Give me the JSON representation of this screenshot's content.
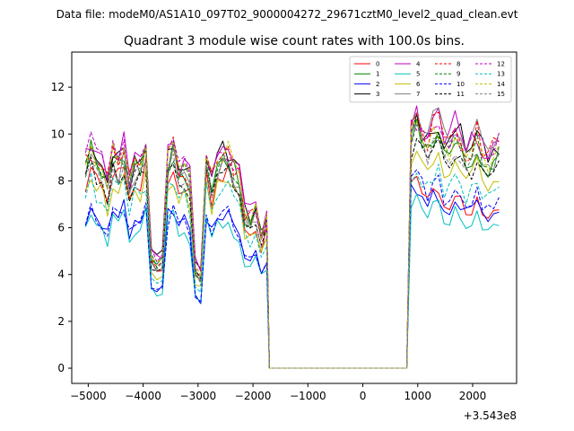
{
  "chart_data": {
    "type": "line",
    "suptitle": "Data file: modeM0/AS1A10_097T02_9000004272_29671cztM0_level2_quad_clean.evt",
    "title": "Quadrant 3 module wise count rates with 100.0s bins.",
    "xlabel": "",
    "ylabel": "",
    "x_offset_label": "+3.543e8",
    "xlim": [
      -5300,
      2800
    ],
    "ylim": [
      -0.65,
      13.5
    ],
    "x_ticks": [
      -5000,
      -4000,
      -3000,
      -2000,
      -1000,
      0,
      1000,
      2000
    ],
    "x_tick_labels": [
      "−5000",
      "−4000",
      "−3000",
      "−2000",
      "−1000",
      "0",
      "1000",
      "2000"
    ],
    "y_ticks": [
      0,
      2,
      4,
      6,
      8,
      10,
      12
    ],
    "y_tick_labels": [
      "0",
      "2",
      "4",
      "6",
      "8",
      "10",
      "12"
    ],
    "grid": false,
    "legend_placement": "top-right",
    "gti": [
      {
        "start": -5050,
        "stop": -1750
      },
      {
        "start": 880,
        "stop": 2430
      }
    ],
    "gap_level": 0.0,
    "gap_ends": [
      -1700,
      800
    ],
    "series": [
      {
        "name": "0",
        "color": "#ff0000",
        "dash": false,
        "base1": 8.0,
        "base2": 7.6
      },
      {
        "name": "1",
        "color": "#008000",
        "dash": false,
        "base1": 8.6,
        "base2": 9.7
      },
      {
        "name": "2",
        "color": "#0000ff",
        "dash": false,
        "base1": 6.4,
        "base2": 7.4
      },
      {
        "name": "3",
        "color": "#000000",
        "dash": false,
        "base1": 8.9,
        "base2": 10.4
      },
      {
        "name": "4",
        "color": "#c000c0",
        "dash": false,
        "base1": 9.1,
        "base2": 10.6
      },
      {
        "name": "5",
        "color": "#00bfbf",
        "dash": false,
        "base1": 6.0,
        "base2": 6.9
      },
      {
        "name": "6",
        "color": "#bfbf00",
        "dash": false,
        "base1": 7.6,
        "base2": 9.0
      },
      {
        "name": "7",
        "color": "#808080",
        "dash": false,
        "base1": 8.3,
        "base2": 10.7
      },
      {
        "name": "8",
        "color": "#ff0000",
        "dash": true,
        "base1": 8.8,
        "base2": 10.4
      },
      {
        "name": "9",
        "color": "#008000",
        "dash": true,
        "base1": 8.5,
        "base2": 9.9
      },
      {
        "name": "10",
        "color": "#0000ff",
        "dash": true,
        "base1": 6.3,
        "base2": 7.9
      },
      {
        "name": "11",
        "color": "#000000",
        "dash": true,
        "base1": 8.1,
        "base2": 9.4
      },
      {
        "name": "12",
        "color": "#c000c0",
        "dash": true,
        "base1": 8.9,
        "base2": 10.3
      },
      {
        "name": "13",
        "color": "#00bfbf",
        "dash": true,
        "base1": 7.4,
        "base2": 8.4
      },
      {
        "name": "14",
        "color": "#bfbf00",
        "dash": true,
        "base1": 8.9,
        "base2": 10.3
      },
      {
        "name": "15",
        "color": "#808080",
        "dash": true,
        "base1": 8.2,
        "base2": 9.7
      }
    ]
  }
}
